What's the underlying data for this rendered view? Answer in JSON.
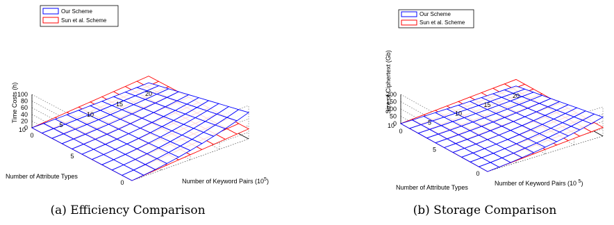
{
  "chart_data": [
    {
      "type": "surface",
      "caption": "(a) Efficiency Comparison",
      "xlabel": "Number of Keyword Pairs (10",
      "xlabel_sup": "5",
      "xlabel_end": ")",
      "ylabel": "Number of Attribute Types",
      "zlabel": "Time Costs (h)",
      "xlim": [
        0,
        20
      ],
      "ylim": [
        0,
        10
      ],
      "zlim": [
        0,
        100
      ],
      "x_ticks": [
        "0",
        "5",
        "10",
        "15",
        "20"
      ],
      "y_ticks": [
        "0",
        "5",
        "10"
      ],
      "z_ticks": [
        "0",
        "20",
        "40",
        "60",
        "80",
        "100"
      ],
      "grid": true,
      "legend_position": "top-left",
      "x_grid": [
        0,
        2,
        4,
        6,
        8,
        10,
        12,
        14,
        16,
        18,
        20
      ],
      "y_grid": [
        0,
        1,
        2,
        3,
        4,
        5,
        6,
        7,
        8,
        9,
        10
      ],
      "series": [
        {
          "name": "Our Scheme",
          "color": "#0000ff",
          "z_at": {
            "x0": 0,
            "x20_y0": 79,
            "x20_y10": 10
          }
        },
        {
          "name": "Sun et al. Scheme",
          "color": "#ff0000",
          "z_at": {
            "x0": 0,
            "x20": 30
          }
        }
      ]
    },
    {
      "type": "surface",
      "caption": "(b) Storage Comparison",
      "xlabel": "Number of Keyword Pairs (10 ",
      "xlabel_sup": "5",
      "xlabel_end": ")",
      "ylabel": "Number of Attribute Types",
      "zlabel": "Size of Ciphertext (Gb)",
      "xlim": [
        0,
        20
      ],
      "ylim": [
        0,
        10
      ],
      "zlim": [
        0,
        200
      ],
      "x_ticks": [
        "0",
        "5",
        "10",
        "15",
        "20"
      ],
      "y_ticks": [
        "0",
        "5",
        "10"
      ],
      "z_ticks": [
        "0",
        "50",
        "100",
        "150",
        "200"
      ],
      "grid": true,
      "legend_position": "top-left",
      "x_grid": [
        0,
        2,
        4,
        6,
        8,
        10,
        12,
        14,
        16,
        18,
        20
      ],
      "y_grid": [
        0,
        1,
        2,
        3,
        4,
        5,
        6,
        7,
        8,
        9,
        10
      ],
      "series": [
        {
          "name": "Our Scheme",
          "color": "#0000ff",
          "z_at": {
            "x0": 0,
            "x20_y0": 130,
            "x20_y10": 15
          }
        },
        {
          "name": "Sun et al. Scheme",
          "color": "#ff0000",
          "z_at": {
            "x0": 0,
            "x20": 60
          }
        }
      ]
    }
  ]
}
